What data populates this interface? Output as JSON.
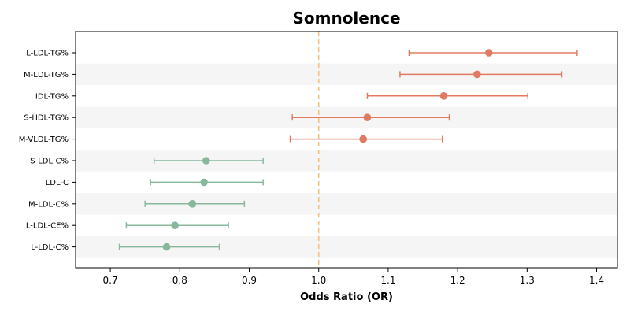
{
  "chart_data": {
    "type": "forest",
    "title": "Somnolence",
    "xlabel": "Odds Ratio (OR)",
    "ylabel": "",
    "xlim": [
      0.65,
      1.43
    ],
    "xticks": [
      "0.7",
      "0.8",
      "0.9",
      "1.0",
      "1.1",
      "1.2",
      "1.3",
      "1.4"
    ],
    "reference_line": 1.0,
    "colors": {
      "positive": "#e07b62",
      "negative": "#87b89c",
      "reference": "#f2c27a",
      "band": "#f5f5f5"
    },
    "categories": [
      "L-LDL-TG%",
      "M-LDL-TG%",
      "IDL-TG%",
      "S-HDL-TG%",
      "M-VLDL-TG%",
      "S-LDL-C%",
      "LDL-C",
      "M-LDL-C%",
      "L-LDL-CE%",
      "L-LDL-C%"
    ],
    "or": [
      1.245,
      1.228,
      1.18,
      1.07,
      1.064,
      0.838,
      0.835,
      0.818,
      0.793,
      0.781
    ],
    "ci_low": [
      1.13,
      1.117,
      1.07,
      0.962,
      0.959,
      0.763,
      0.758,
      0.75,
      0.723,
      0.713
    ],
    "ci_high": [
      1.372,
      1.35,
      1.301,
      1.188,
      1.178,
      0.92,
      0.92,
      0.893,
      0.87,
      0.857
    ]
  }
}
